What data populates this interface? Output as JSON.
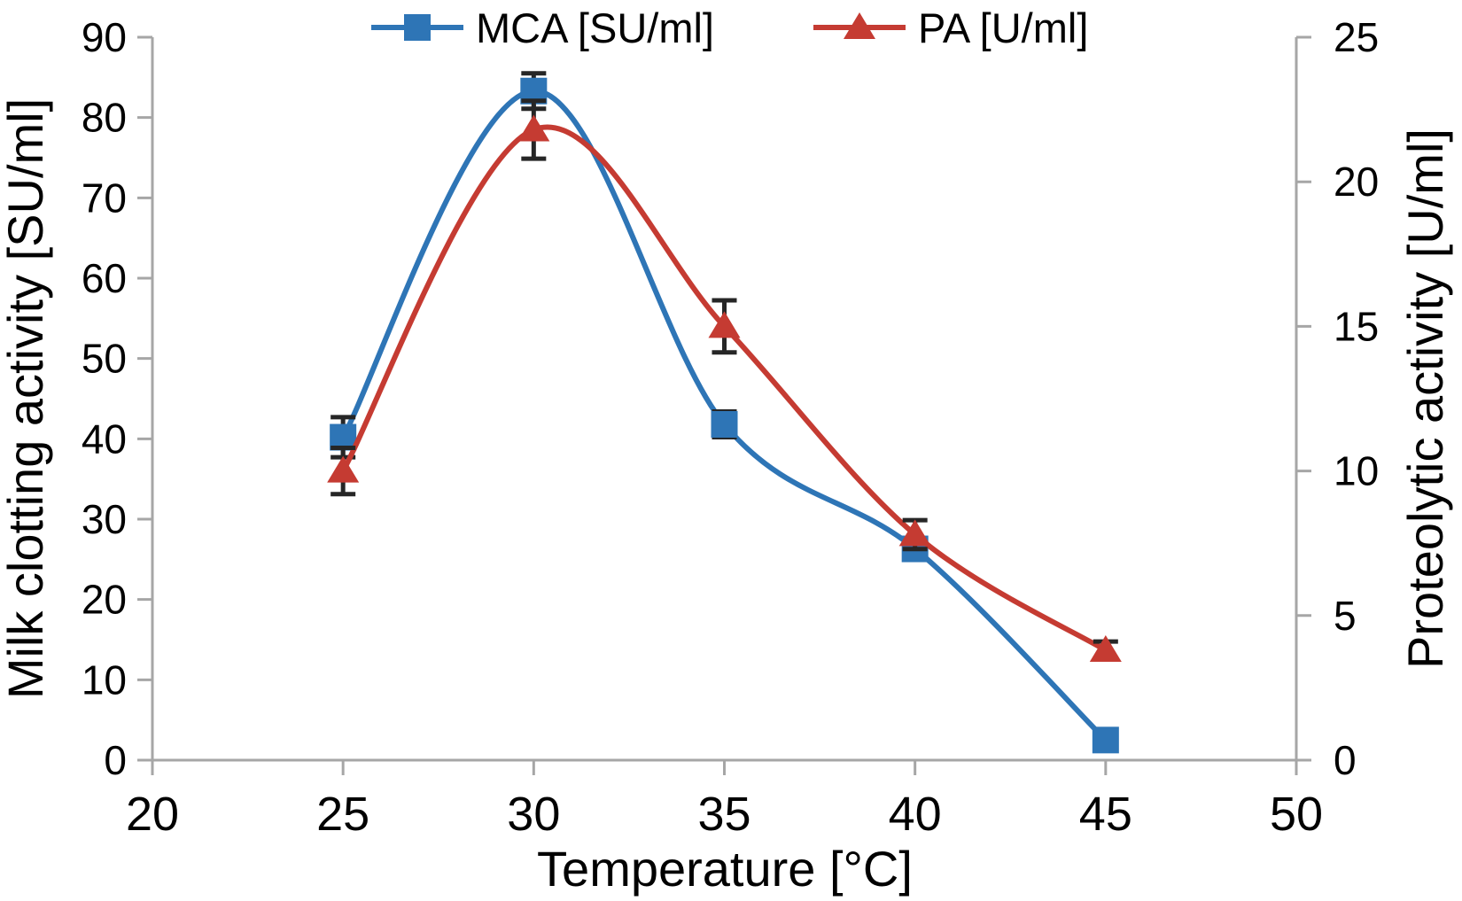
{
  "chart_data": {
    "type": "line",
    "title": "",
    "xlabel": "Temperature [°C]",
    "ylabel_left": "Milk clotting activity [SU/ml]",
    "ylabel_right": "Proteolytic activity [U/ml]",
    "x": [
      25,
      30,
      35,
      40,
      45
    ],
    "x_ticks": [
      20,
      25,
      30,
      35,
      40,
      45,
      50
    ],
    "xlim": [
      20,
      50
    ],
    "yleft_ticks": [
      0,
      10,
      20,
      30,
      40,
      50,
      60,
      70,
      80,
      90
    ],
    "ylim_left": [
      0,
      90
    ],
    "yright_ticks": [
      0,
      5,
      10,
      15,
      20,
      25
    ],
    "ylim_right": [
      0,
      25
    ],
    "grid": false,
    "legend_position": "top-center",
    "smooth_lines": true,
    "error_bars": true,
    "series": [
      {
        "name": "MCA [SU/ml]",
        "axis": "left",
        "marker": "square",
        "color": "#2E75B6",
        "values": [
          40.2,
          83.3,
          41.8,
          26.3,
          2.5
        ],
        "errors": [
          2.5,
          2.2,
          1.6,
          1.3,
          0.4
        ]
      },
      {
        "name": "PA [U/ml]",
        "axis": "right",
        "marker": "triangle",
        "color": "#C53B32",
        "values": [
          10.0,
          21.8,
          15.0,
          7.8,
          3.8
        ],
        "errors": [
          0.8,
          1.0,
          0.9,
          0.5,
          0.3
        ]
      }
    ],
    "colors": {
      "axis": "#A6A6A6",
      "error_bar": "#262626",
      "text": "#000000"
    }
  }
}
